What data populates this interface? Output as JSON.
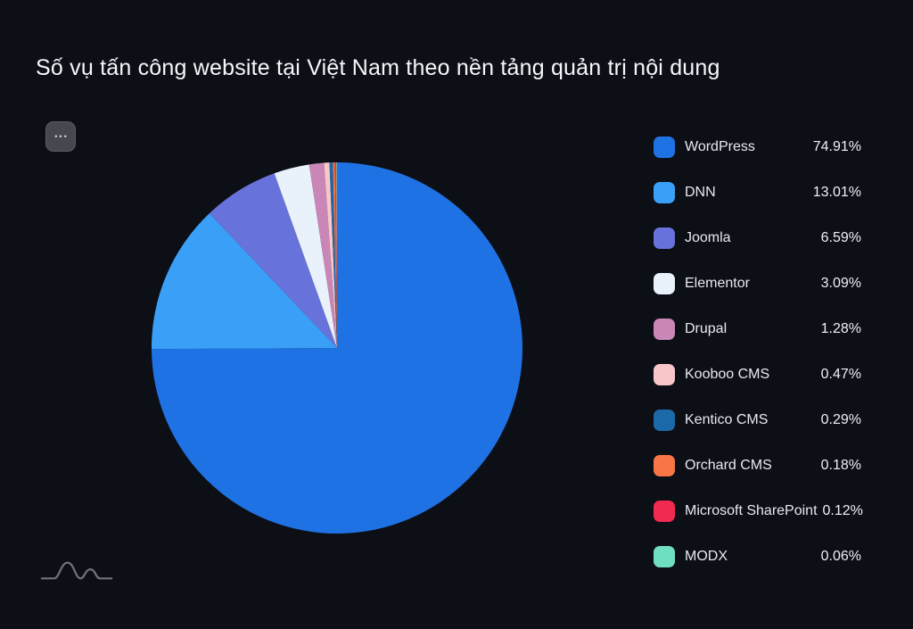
{
  "title": "Số vụ tấn công website tại Việt Nam theo nền tảng quản trị nội dung",
  "header": {
    "more_button": {
      "icon_name": "ellipsis-icon",
      "icon_glyph": "•••"
    }
  },
  "footer": {
    "logo_icon_name": "wave-logo-icon"
  },
  "colors": {
    "background": "#0d0f17",
    "title_text": "#f5f7fa",
    "legend_text": "#e7eaf0",
    "more_button_bg": "#46474f",
    "logo_stroke": "#71727c"
  },
  "chart_data": {
    "type": "pie",
    "title": "Số vụ tấn công website tại Việt Nam theo nền tảng quản trị nội dung",
    "legend_position": "right",
    "start_angle_deg": -90,
    "direction": "clockwise",
    "series": [
      {
        "name": "WordPress",
        "value": 74.91,
        "display": "74.91%",
        "color": "#1f72e4"
      },
      {
        "name": "DNN",
        "value": 13.01,
        "display": "13.01%",
        "color": "#3aa0f7"
      },
      {
        "name": "Joomla",
        "value": 6.59,
        "display": "6.59%",
        "color": "#6773db"
      },
      {
        "name": "Elementor",
        "value": 3.09,
        "display": "3.09%",
        "color": "#e9f2fb"
      },
      {
        "name": "Drupal",
        "value": 1.28,
        "display": "1.28%",
        "color": "#c986b6"
      },
      {
        "name": "Kooboo CMS",
        "value": 0.47,
        "display": "0.47%",
        "color": "#f9c7ca"
      },
      {
        "name": "Kentico CMS",
        "value": 0.29,
        "display": "0.29%",
        "color": "#1b69a8"
      },
      {
        "name": "Orchard CMS",
        "value": 0.18,
        "display": "0.18%",
        "color": "#f87546"
      },
      {
        "name": "Microsoft SharePoint",
        "value": 0.12,
        "display": "0.12%",
        "color": "#f22950"
      },
      {
        "name": "MODX",
        "value": 0.06,
        "display": "0.06%",
        "color": "#70dfc1"
      }
    ]
  }
}
